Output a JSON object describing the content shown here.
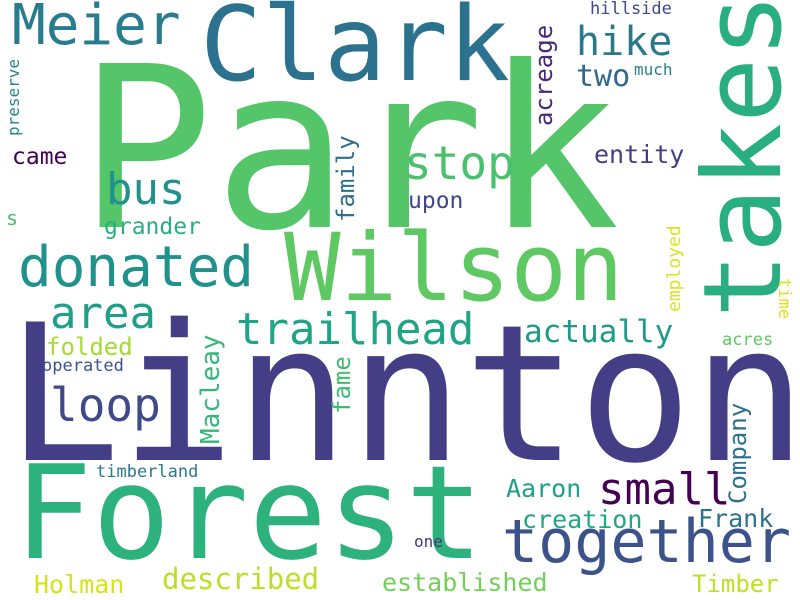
{
  "words": {
    "park": {
      "text": "Park",
      "color": "#54c568"
    },
    "linnton": {
      "text": "Linnton",
      "color": "#433e85"
    },
    "forest": {
      "text": "Forest",
      "color": "#2db27d"
    },
    "clark": {
      "text": "Clark",
      "color": "#2c728e"
    },
    "takes": {
      "text": "takes",
      "color": "#28ae80"
    },
    "wilson": {
      "text": "Wilson",
      "color": "#5ec962"
    },
    "together": {
      "text": "together",
      "color": "#3b528b"
    },
    "donated": {
      "text": "donated",
      "color": "#21918c"
    },
    "meier": {
      "text": "Meier",
      "color": "#287c8e"
    },
    "trailhead": {
      "text": "trailhead",
      "color": "#20a486"
    },
    "stop": {
      "text": "stop",
      "color": "#4ac16d"
    },
    "hike": {
      "text": "hike",
      "color": "#2a788e"
    },
    "bus": {
      "text": "bus",
      "color": "#21918c"
    },
    "area": {
      "text": "area",
      "color": "#1f9e89"
    },
    "loop": {
      "text": "loop",
      "color": "#3e4a89"
    },
    "small": {
      "text": "small",
      "color": "#440154"
    },
    "actually": {
      "text": "actually",
      "color": "#1f9a8a"
    },
    "two": {
      "text": "two",
      "color": "#31688e"
    },
    "entity": {
      "text": "entity",
      "color": "#433e85"
    },
    "acreage": {
      "text": "acreage",
      "color": "#482878"
    },
    "described": {
      "text": "described",
      "color": "#bddf26"
    },
    "established": {
      "text": "established",
      "color": "#73d056"
    },
    "creation": {
      "text": "creation",
      "color": "#22a785"
    },
    "aaron": {
      "text": "Aaron",
      "color": "#1fa088"
    },
    "frank": {
      "text": "Frank",
      "color": "#2c728e"
    },
    "company": {
      "text": "Company",
      "color": "#2c728e"
    },
    "timber": {
      "text": "Timber",
      "color": "#c2df23"
    },
    "holman": {
      "text": "Holman",
      "color": "#d8e219"
    },
    "macleay": {
      "text": "Macleay",
      "color": "#35b779"
    },
    "fame": {
      "text": "fame",
      "color": "#3fbc73"
    },
    "family": {
      "text": "family",
      "color": "#2e6f8e"
    },
    "folded": {
      "text": "folded",
      "color": "#a5db36"
    },
    "grander": {
      "text": "grander",
      "color": "#29af7f"
    },
    "came": {
      "text": "came",
      "color": "#440154"
    },
    "upon": {
      "text": "upon",
      "color": "#404688"
    },
    "timberland": {
      "text": "timberland",
      "color": "#2a788e"
    },
    "operated": {
      "text": "operated",
      "color": "#3b528b"
    },
    "hillside": {
      "text": "hillside",
      "color": "#3e4989"
    },
    "much": {
      "text": "much",
      "color": "#26818e"
    },
    "preserve": {
      "text": "preserve",
      "color": "#25848e"
    },
    "s": {
      "text": "s",
      "color": "#4ac16d"
    },
    "employed": {
      "text": "employed",
      "color": "#dde318"
    },
    "time": {
      "text": "time",
      "color": "#dde318"
    },
    "acres": {
      "text": "acres",
      "color": "#5ec962"
    },
    "one": {
      "text": "one",
      "color": "#443983"
    }
  }
}
